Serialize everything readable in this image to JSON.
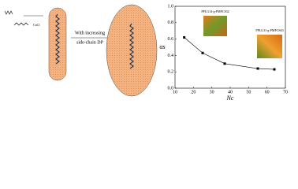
{
  "diagram": {
    "reagent": "CuCl",
    "arrow_label_1": "With increasing",
    "arrow_label_2": "side-chain DP"
  },
  "chart_data": {
    "type": "line",
    "xlabel": "Nc",
    "ylabel": "αs",
    "x": [
      15,
      25,
      37,
      55,
      64
    ],
    "series": [
      {
        "color": "#000000",
        "values": [
          0.62,
          0.43,
          0.3,
          0.24,
          0.23
        ]
      }
    ],
    "xlim": [
      10,
      70
    ],
    "xticks": [
      10,
      20,
      30,
      40,
      50,
      60,
      70
    ],
    "ylim": [
      0,
      1
    ],
    "yticks": [
      {
        "value": 0,
        "label": "0.0"
      },
      0.2,
      0.4,
      0.6,
      0.8,
      {
        "value": 1,
        "label": "1.0"
      }
    ],
    "annotations": [
      "PPLG14-g-PMPCS32",
      "PPLG11-g-PMPCS63"
    ]
  }
}
